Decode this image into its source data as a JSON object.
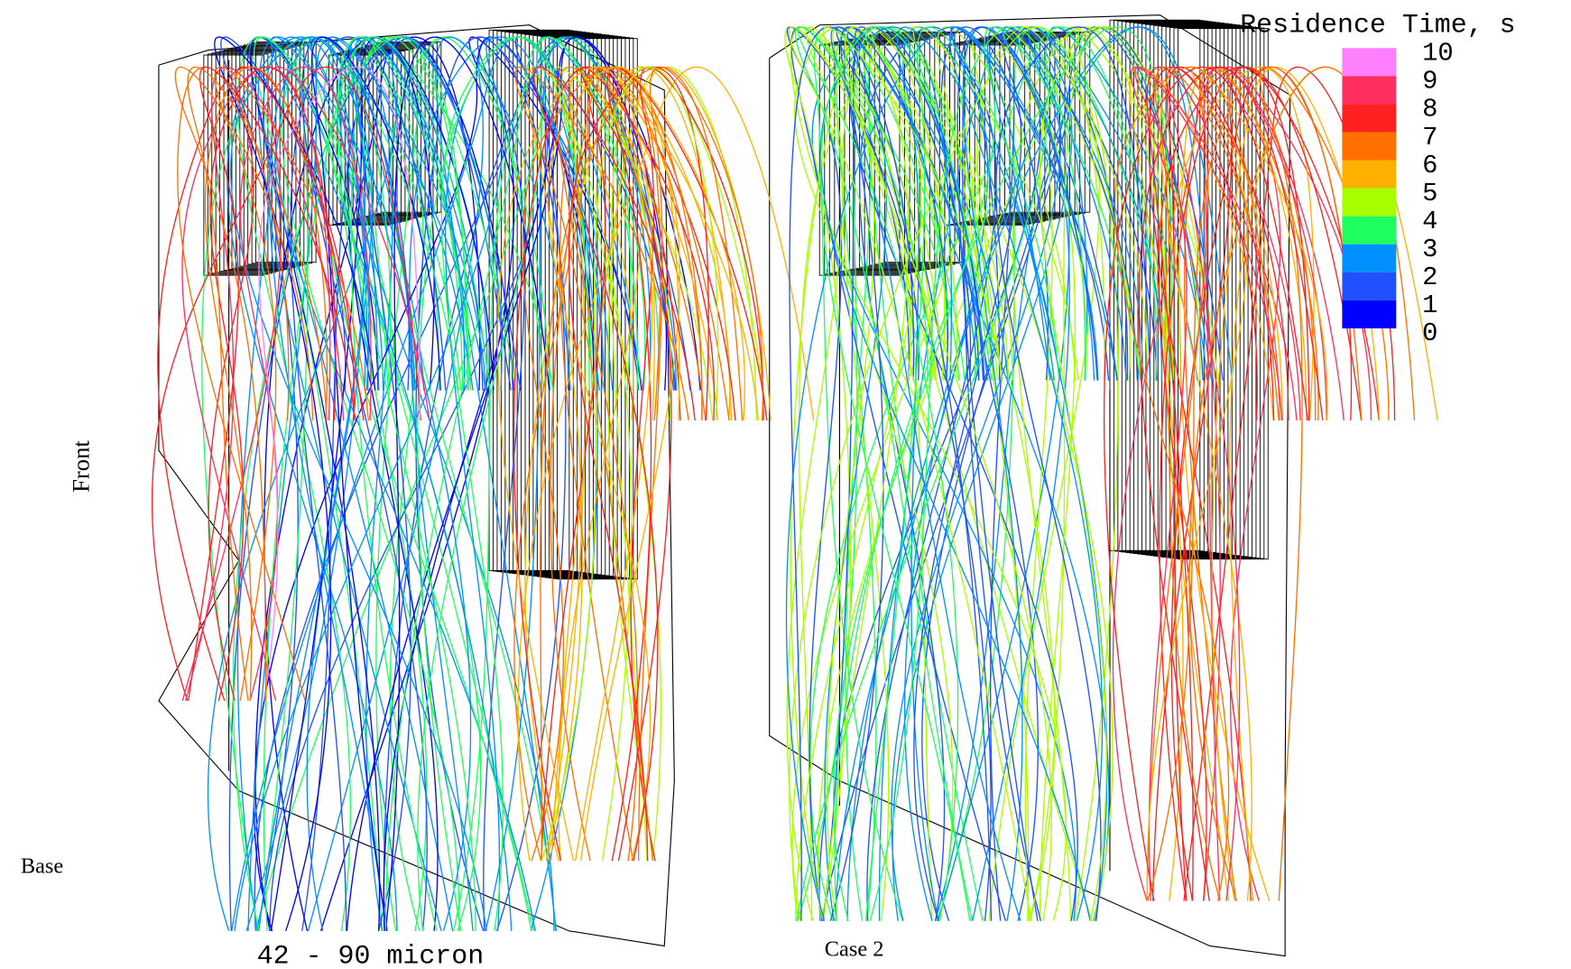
{
  "title": "Residence Time, s",
  "legend": {
    "ticks": [
      10,
      9,
      8,
      7,
      6,
      5,
      4,
      3,
      2,
      1,
      0
    ],
    "colors": [
      "#ff80ff",
      "#ff3060",
      "#ff2020",
      "#ff7000",
      "#ffb000",
      "#a8ff00",
      "#20ff60",
      "#0090ff",
      "#2050ff",
      "#0000ff"
    ]
  },
  "labels": {
    "side": "Front",
    "left_case": "Base",
    "size_range": "42 - 90 micron",
    "right_case": "Case 2"
  }
}
